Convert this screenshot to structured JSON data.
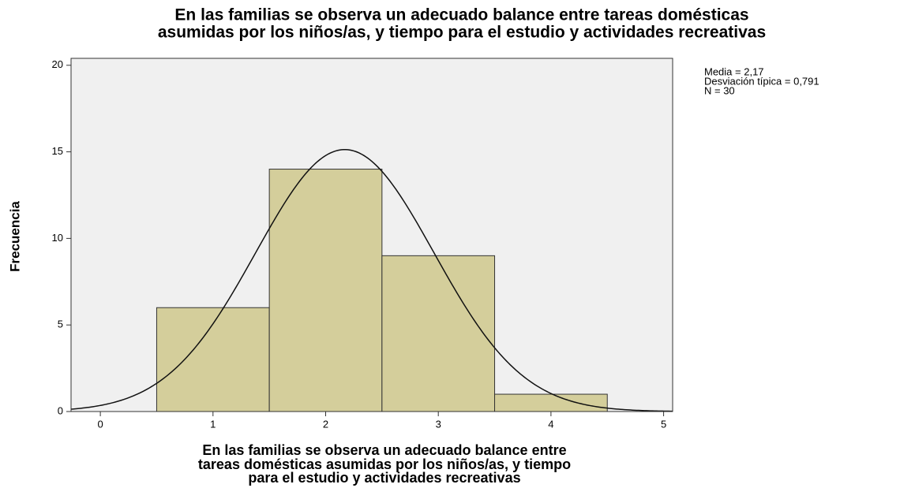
{
  "chart_data": {
    "type": "histogram",
    "title": [
      "En las familias se observa un adecuado balance entre tareas domésticas",
      "asumidas por los niños/as, y tiempo para el estudio y actividades recreativas"
    ],
    "xlabel": [
      "En las familias se observa un adecuado balance entre",
      "tareas domésticas asumidas por los niños/as, y tiempo",
      "para el estudio y actividades recreativas"
    ],
    "ylabel": "Frecuencia",
    "bins": [
      0.5,
      1.5,
      2.5,
      3.5,
      4.5
    ],
    "counts": [
      6,
      14,
      9,
      1
    ],
    "color": "#d4ce9b",
    "xlim": [
      -0.26,
      5.08
    ],
    "xticks": [
      0,
      1,
      2,
      3,
      4,
      5
    ],
    "ylim": [
      0,
      20.4
    ],
    "yticks": [
      0,
      5,
      10,
      15,
      20
    ],
    "stats": {
      "values": [
        2.17,
        0.791,
        30
      ],
      "value_labels": [
        "Media = 2,17",
        "Desviación típica = 0,791",
        "N = 30"
      ]
    }
  }
}
